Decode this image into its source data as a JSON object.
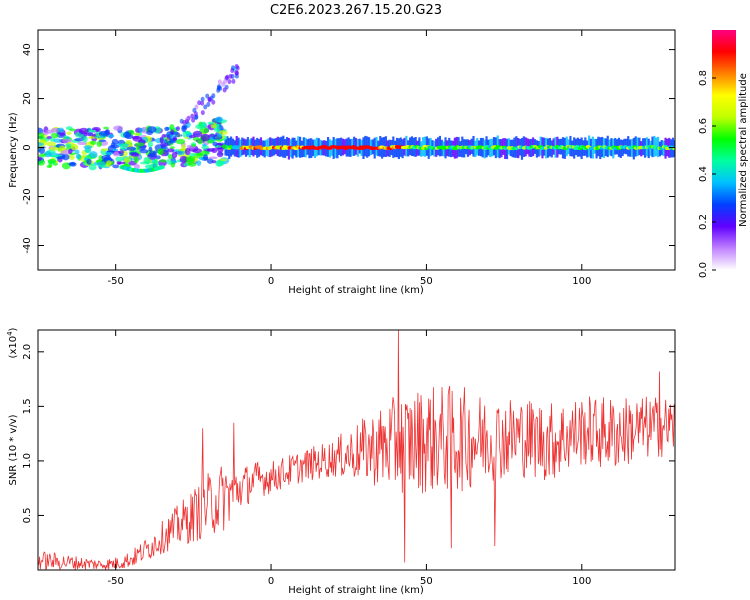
{
  "title": "C2E6.2023.267.15.20.G23",
  "chart_data": [
    {
      "type": "heatmap",
      "title": "C2E6.2023.267.15.20.G23",
      "xlabel": "Height of straight line (km)",
      "ylabel": "Frequency (Hz)",
      "xlim": [
        -75,
        130
      ],
      "ylim": [
        -50,
        48
      ],
      "xticks": [
        -50,
        0,
        50,
        100
      ],
      "yticks": [
        -40,
        -20,
        0,
        20,
        40
      ],
      "xtick_labels": [
        "-50",
        "0",
        "50",
        "100"
      ],
      "ytick_labels": [
        "-40",
        "-20",
        "0",
        "20",
        "40"
      ],
      "colorbar": {
        "label": "Normalized spectral amplitude",
        "range": [
          0,
          1
        ],
        "ticks": [
          0.0,
          0.2,
          0.4,
          0.6,
          0.8
        ],
        "tick_labels": [
          "0.0",
          "0.2",
          "0.4",
          "0.6",
          "0.8"
        ],
        "colormap": [
          "#ffffff",
          "#c080ff",
          "#6000ff",
          "#0040ff",
          "#00c0ff",
          "#00ffa0",
          "#00ff00",
          "#c0ff00",
          "#ffff00",
          "#ff8000",
          "#ff0000",
          "#ff0080"
        ]
      },
      "band_center_hz": 0,
      "band_halfwidth_hz": 3
    },
    {
      "type": "line",
      "xlabel": "Height of straight line (km)",
      "ylabel": "SNR (10 * v/v)",
      "scale_label": "(x10",
      "scale_exponent": "4",
      "scale_close": ")",
      "xlim": [
        -75,
        130
      ],
      "ylim": [
        0,
        2.2
      ],
      "xticks": [
        -50,
        0,
        50,
        100
      ],
      "yticks": [
        0.5,
        1.0,
        1.5,
        2.0
      ],
      "xtick_labels": [
        "-50",
        "0",
        "50",
        "100"
      ],
      "ytick_labels": [
        "0.5",
        "1.0",
        "1.5",
        "2.0"
      ],
      "color": "#ee3333",
      "envelope": {
        "x": [
          -75,
          -65,
          -55,
          -50,
          -45,
          -40,
          -35,
          -30,
          -25,
          -20,
          -15,
          -10,
          -5,
          0,
          10,
          20,
          30,
          40,
          50,
          60,
          70,
          80,
          90,
          100,
          110,
          120,
          130
        ],
        "low": [
          0.0,
          0.0,
          0.0,
          0.0,
          0.02,
          0.08,
          0.15,
          0.2,
          0.25,
          0.3,
          0.35,
          0.55,
          0.65,
          0.7,
          0.8,
          0.85,
          0.8,
          0.7,
          0.7,
          0.7,
          0.8,
          0.85,
          0.8,
          0.95,
          0.9,
          1.0,
          1.05
        ],
        "high": [
          0.18,
          0.14,
          0.1,
          0.12,
          0.18,
          0.3,
          0.45,
          0.6,
          0.75,
          0.9,
          1.0,
          0.95,
          1.0,
          1.0,
          1.1,
          1.2,
          1.4,
          1.6,
          1.7,
          1.7,
          1.6,
          1.6,
          1.55,
          1.6,
          1.6,
          1.6,
          1.6
        ]
      },
      "peaks": [
        {
          "x": -22,
          "y": 1.3
        },
        {
          "x": -12,
          "y": 1.35
        },
        {
          "x": 41,
          "y": 2.2
        },
        {
          "x": 43,
          "y": 0.07
        },
        {
          "x": 58,
          "y": 0.2
        },
        {
          "x": 72,
          "y": 0.22
        },
        {
          "x": 125,
          "y": 1.82
        }
      ]
    }
  ]
}
